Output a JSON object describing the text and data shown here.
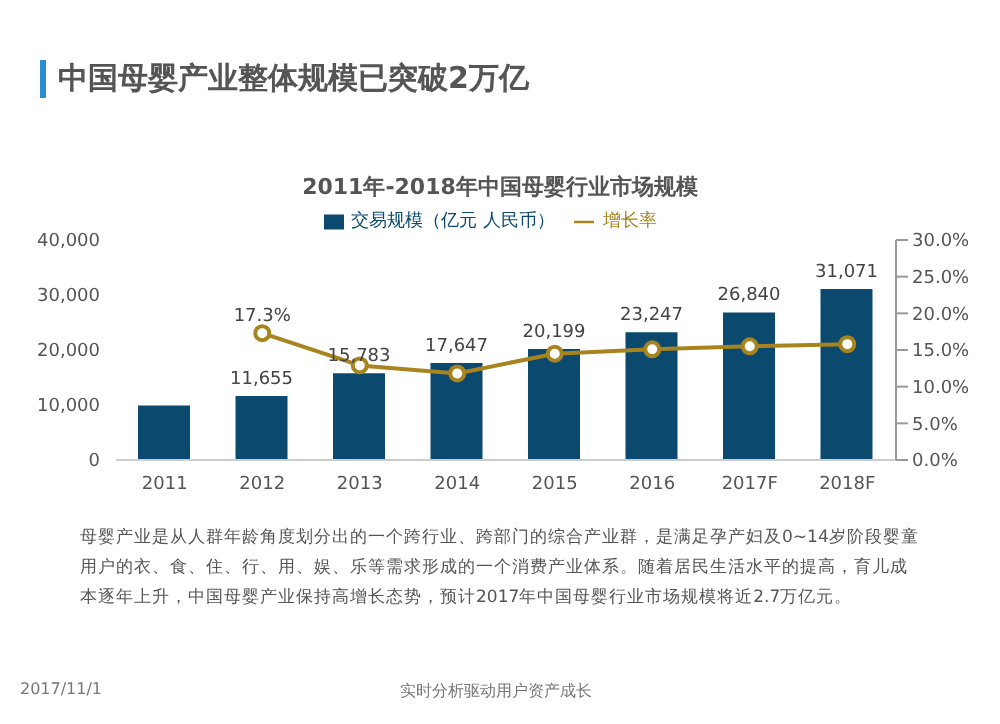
{
  "chart_data": {
    "type": "bar",
    "title": "中国母婴产业整体规模已突破2万亿",
    "subtitle": "2011年-2018年中国母婴行业市场规模",
    "categories": [
      "2011",
      "2012",
      "2013",
      "2014",
      "2015",
      "2016",
      "2017F",
      "2018F"
    ],
    "series": [
      {
        "name": "交易规模（亿元 人民币）",
        "color": "#0b4a6e",
        "values": [
          9900,
          11655,
          15783,
          17647,
          20199,
          23247,
          26840,
          31071
        ],
        "value_labels": [
          null,
          "11,655",
          "15,783",
          "17,647",
          "20,199",
          "23,247",
          "26,840",
          "31,071"
        ]
      },
      {
        "name": "增长率",
        "type": "line",
        "axis": "y2",
        "color": "#a8841e",
        "marker": "circle",
        "values": [
          null,
          17.3,
          12.9,
          11.8,
          14.5,
          15.1,
          15.5,
          15.8
        ],
        "value_labels": [
          null,
          "17.3%",
          null,
          null,
          null,
          null,
          null,
          null
        ]
      }
    ],
    "ylim": [
      0,
      40000
    ],
    "yticks": [
      0,
      {
        "value": 10000,
        "label": "10,000"
      },
      {
        "value": 20000,
        "label": "20,000"
      },
      {
        "value": 30000,
        "label": "30,000"
      },
      {
        "value": 40000,
        "label": "40,000"
      }
    ],
    "y2lim": [
      0,
      30
    ],
    "y2ticks": [
      {
        "value": 0,
        "label": "0.0%"
      },
      {
        "value": 5,
        "label": "5.0%"
      },
      {
        "value": 10,
        "label": "10.0%"
      },
      {
        "value": 15,
        "label": "15.0%"
      },
      {
        "value": 20,
        "label": "20.0%"
      },
      {
        "value": 25,
        "label": "25.0%"
      },
      {
        "value": 30,
        "label": "30.0%"
      }
    ],
    "legend": "top",
    "grid": false,
    "annotations": [
      "母婴产业是从人群年龄角度划分出的一个跨行业、跨部门的综合产业群，是满足孕产妇及0~14岁阶段婴童用户的衣、食、住、行、用、娱、乐等需求形成的一个消费产业体系。随着居民生活水平的提高，育儿成本逐年上升，中国母婴产业保持高增长态势，预计2017年中国母婴行业市场规模将近2.7万亿元。",
      "2017/11/1",
      "实时分析驱动用户资产成长"
    ]
  }
}
